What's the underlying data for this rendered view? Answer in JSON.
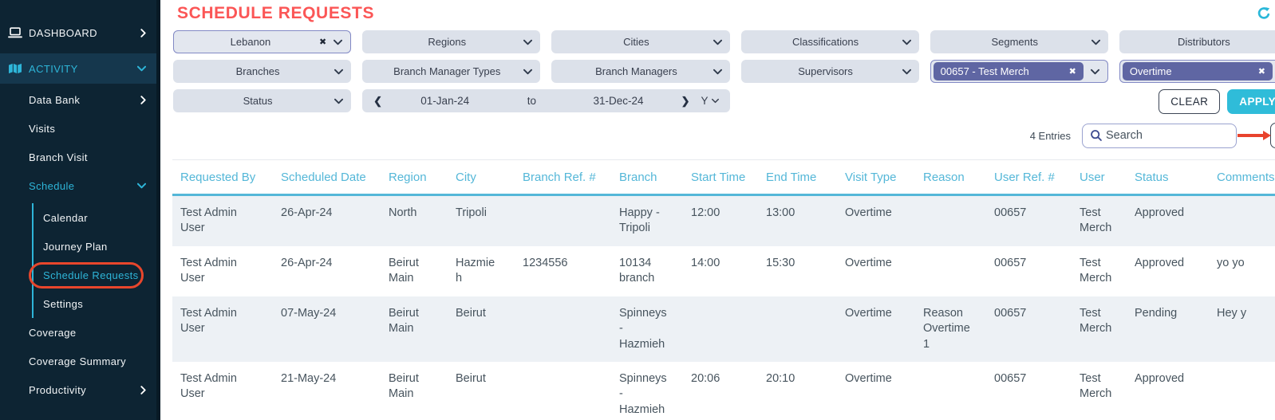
{
  "page_title": "SCHEDULE REQUESTS",
  "colors": {
    "sidebar_bg": "#0d2433",
    "accent_cyan": "#2eb5d8",
    "title_red": "#fb5656",
    "annotation_red": "#e8432d",
    "table_header_blue": "#54b7d8",
    "tag_purple": "#5f66a3",
    "apply_cyan": "#2fbcd9"
  },
  "sidebar": {
    "dashboard": "DASHBOARD",
    "activity": "ACTIVITY",
    "data_bank": "Data Bank",
    "visits": "Visits",
    "branch_visit": "Branch Visit",
    "schedule": "Schedule",
    "calendar": "Calendar",
    "journey_plan": "Journey Plan",
    "schedule_requests": "Schedule Requests",
    "settings": "Settings",
    "coverage": "Coverage",
    "coverage_summary": "Coverage Summary",
    "productivity": "Productivity"
  },
  "filters": {
    "country_selected": "Lebanon",
    "regions": "Regions",
    "cities": "Cities",
    "classifications": "Classifications",
    "segments": "Segments",
    "distributors": "Distributors",
    "branches": "Branches",
    "branch_manager_types": "Branch Manager Types",
    "branch_managers": "Branch Managers",
    "supervisors": "Supervisors",
    "user_selected": "00657 - Test Merch",
    "visit_type_selected": "Overtime",
    "status": "Status",
    "date_from": "01-Jan-24",
    "date_separator": "to",
    "date_to": "31-Dec-24",
    "period": "Y",
    "clear_label": "CLEAR",
    "apply_label": "APPLY"
  },
  "toolbar": {
    "entries_label": "4 Entries",
    "search_placeholder": "Search",
    "add_label": "+"
  },
  "table": {
    "columns": [
      "Requested By",
      "Scheduled Date",
      "Region",
      "City",
      "Branch Ref. #",
      "Branch",
      "Start Time",
      "End Time",
      "Visit Type",
      "Reason",
      "User Ref. #",
      "User",
      "Status",
      "Comments"
    ],
    "rows": [
      [
        "Test Admin User",
        "26-Apr-24",
        "North",
        "Tripoli",
        "",
        "Happy - Tripoli",
        "12:00",
        "13:00",
        "Overtime",
        "",
        "00657",
        "Test Merch",
        "Approved",
        ""
      ],
      [
        "Test Admin User",
        "26-Apr-24",
        "Beirut Main",
        "Hazmieh",
        "1234556",
        "10134 branch",
        "14:00",
        "15:30",
        "Overtime",
        "",
        "00657",
        "Test Merch",
        "Approved",
        "yo yo"
      ],
      [
        "Test Admin User",
        "07-May-24",
        "Beirut Main",
        "Beirut",
        "",
        "Spinneys - Hazmieh",
        "",
        "",
        "Overtime",
        "Reason Overtime 1",
        "00657",
        "Test Merch",
        "Pending",
        "Hey y"
      ],
      [
        "Test Admin User",
        "21-May-24",
        "Beirut Main",
        "Beirut",
        "",
        "Spinneys - Hazmieh",
        "20:06",
        "20:10",
        "Overtime",
        "",
        "00657",
        "Test Merch",
        "Approved",
        ""
      ]
    ]
  }
}
